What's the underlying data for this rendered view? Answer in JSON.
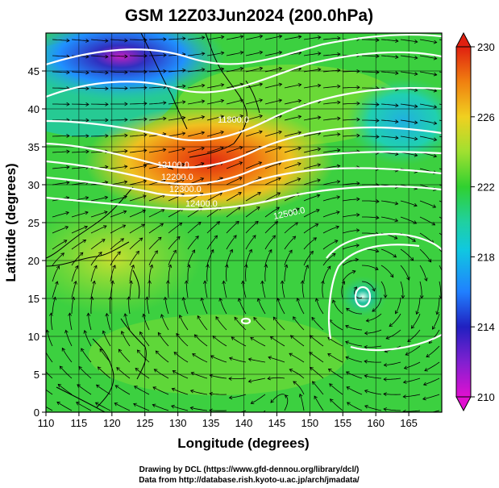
{
  "title": "GSM 12Z03Jun2024 (200.0hPa)",
  "xlabel": "Longitude (degrees)",
  "ylabel": "Latitude  (degrees)",
  "x_ticks": [
    "110",
    "115",
    "120",
    "125",
    "130",
    "135",
    "140",
    "145",
    "150",
    "155",
    "160",
    "165"
  ],
  "y_ticks": [
    "0",
    "5",
    "10",
    "15",
    "20",
    "25",
    "30",
    "35",
    "40",
    "45"
  ],
  "colorbar_ticks": [
    "210",
    "214",
    "218",
    "222",
    "226",
    "230"
  ],
  "credit_line_1": "Drawing by DCL (https://www.gfd-dennou.org/library/dcl/)",
  "credit_line_2": "Data from http://database.rish.kyoto-u.ac.jp/arch/jmadata/",
  "contour_labels": [
    "11800.0",
    "12100.0",
    "12200.0",
    "12300.0",
    "12400.0",
    "12500.0"
  ],
  "chart_data": {
    "type": "heatmap",
    "title": "GSM 12Z03Jun2024 (200.0hPa)",
    "xlabel": "Longitude (degrees)",
    "ylabel": "Latitude  (degrees)",
    "xlim": [
      110,
      170
    ],
    "ylim": [
      0,
      50
    ],
    "x_ticks": [
      110,
      115,
      120,
      125,
      130,
      135,
      140,
      145,
      150,
      155,
      160,
      165
    ],
    "y_ticks": [
      0,
      5,
      10,
      15,
      20,
      25,
      30,
      35,
      40,
      45
    ],
    "colorbar": {
      "min": 210,
      "max": 230,
      "ticks": [
        210,
        214,
        218,
        222,
        226,
        230
      ]
    },
    "colorscale": [
      "#d010d0",
      "#2020c0",
      "#1aa0ff",
      "#20d0a0",
      "#30d030",
      "#90e030",
      "#f0d020",
      "#f08010",
      "#e02010"
    ],
    "features": {
      "warm_core": {
        "lon": 132,
        "lat": 34,
        "value": 229
      },
      "cold_core_north": {
        "lon": 127,
        "lat": 47,
        "value": 211
      },
      "cold_core_east": {
        "lon": 164,
        "lat": 42,
        "value": 217
      },
      "anticyclone_center": {
        "lon": 157.5,
        "lat": 15.5
      },
      "small_vortex": {
        "lon": 147,
        "lat": 3
      },
      "small_high": {
        "lon": 140.5,
        "lat": 12
      }
    },
    "contour_labels": [
      {
        "text": "11800.0",
        "lon": 133,
        "lat": 40
      },
      {
        "text": "12100.0",
        "lon": 129,
        "lat": 36
      },
      {
        "text": "12200.0",
        "lon": 129,
        "lat": 34
      },
      {
        "text": "12300.0",
        "lon": 131,
        "lat": 32
      },
      {
        "text": "12400.0",
        "lon": 132,
        "lat": 30.5
      },
      {
        "text": "12500.0",
        "lon": 152,
        "lat": 26
      }
    ]
  }
}
